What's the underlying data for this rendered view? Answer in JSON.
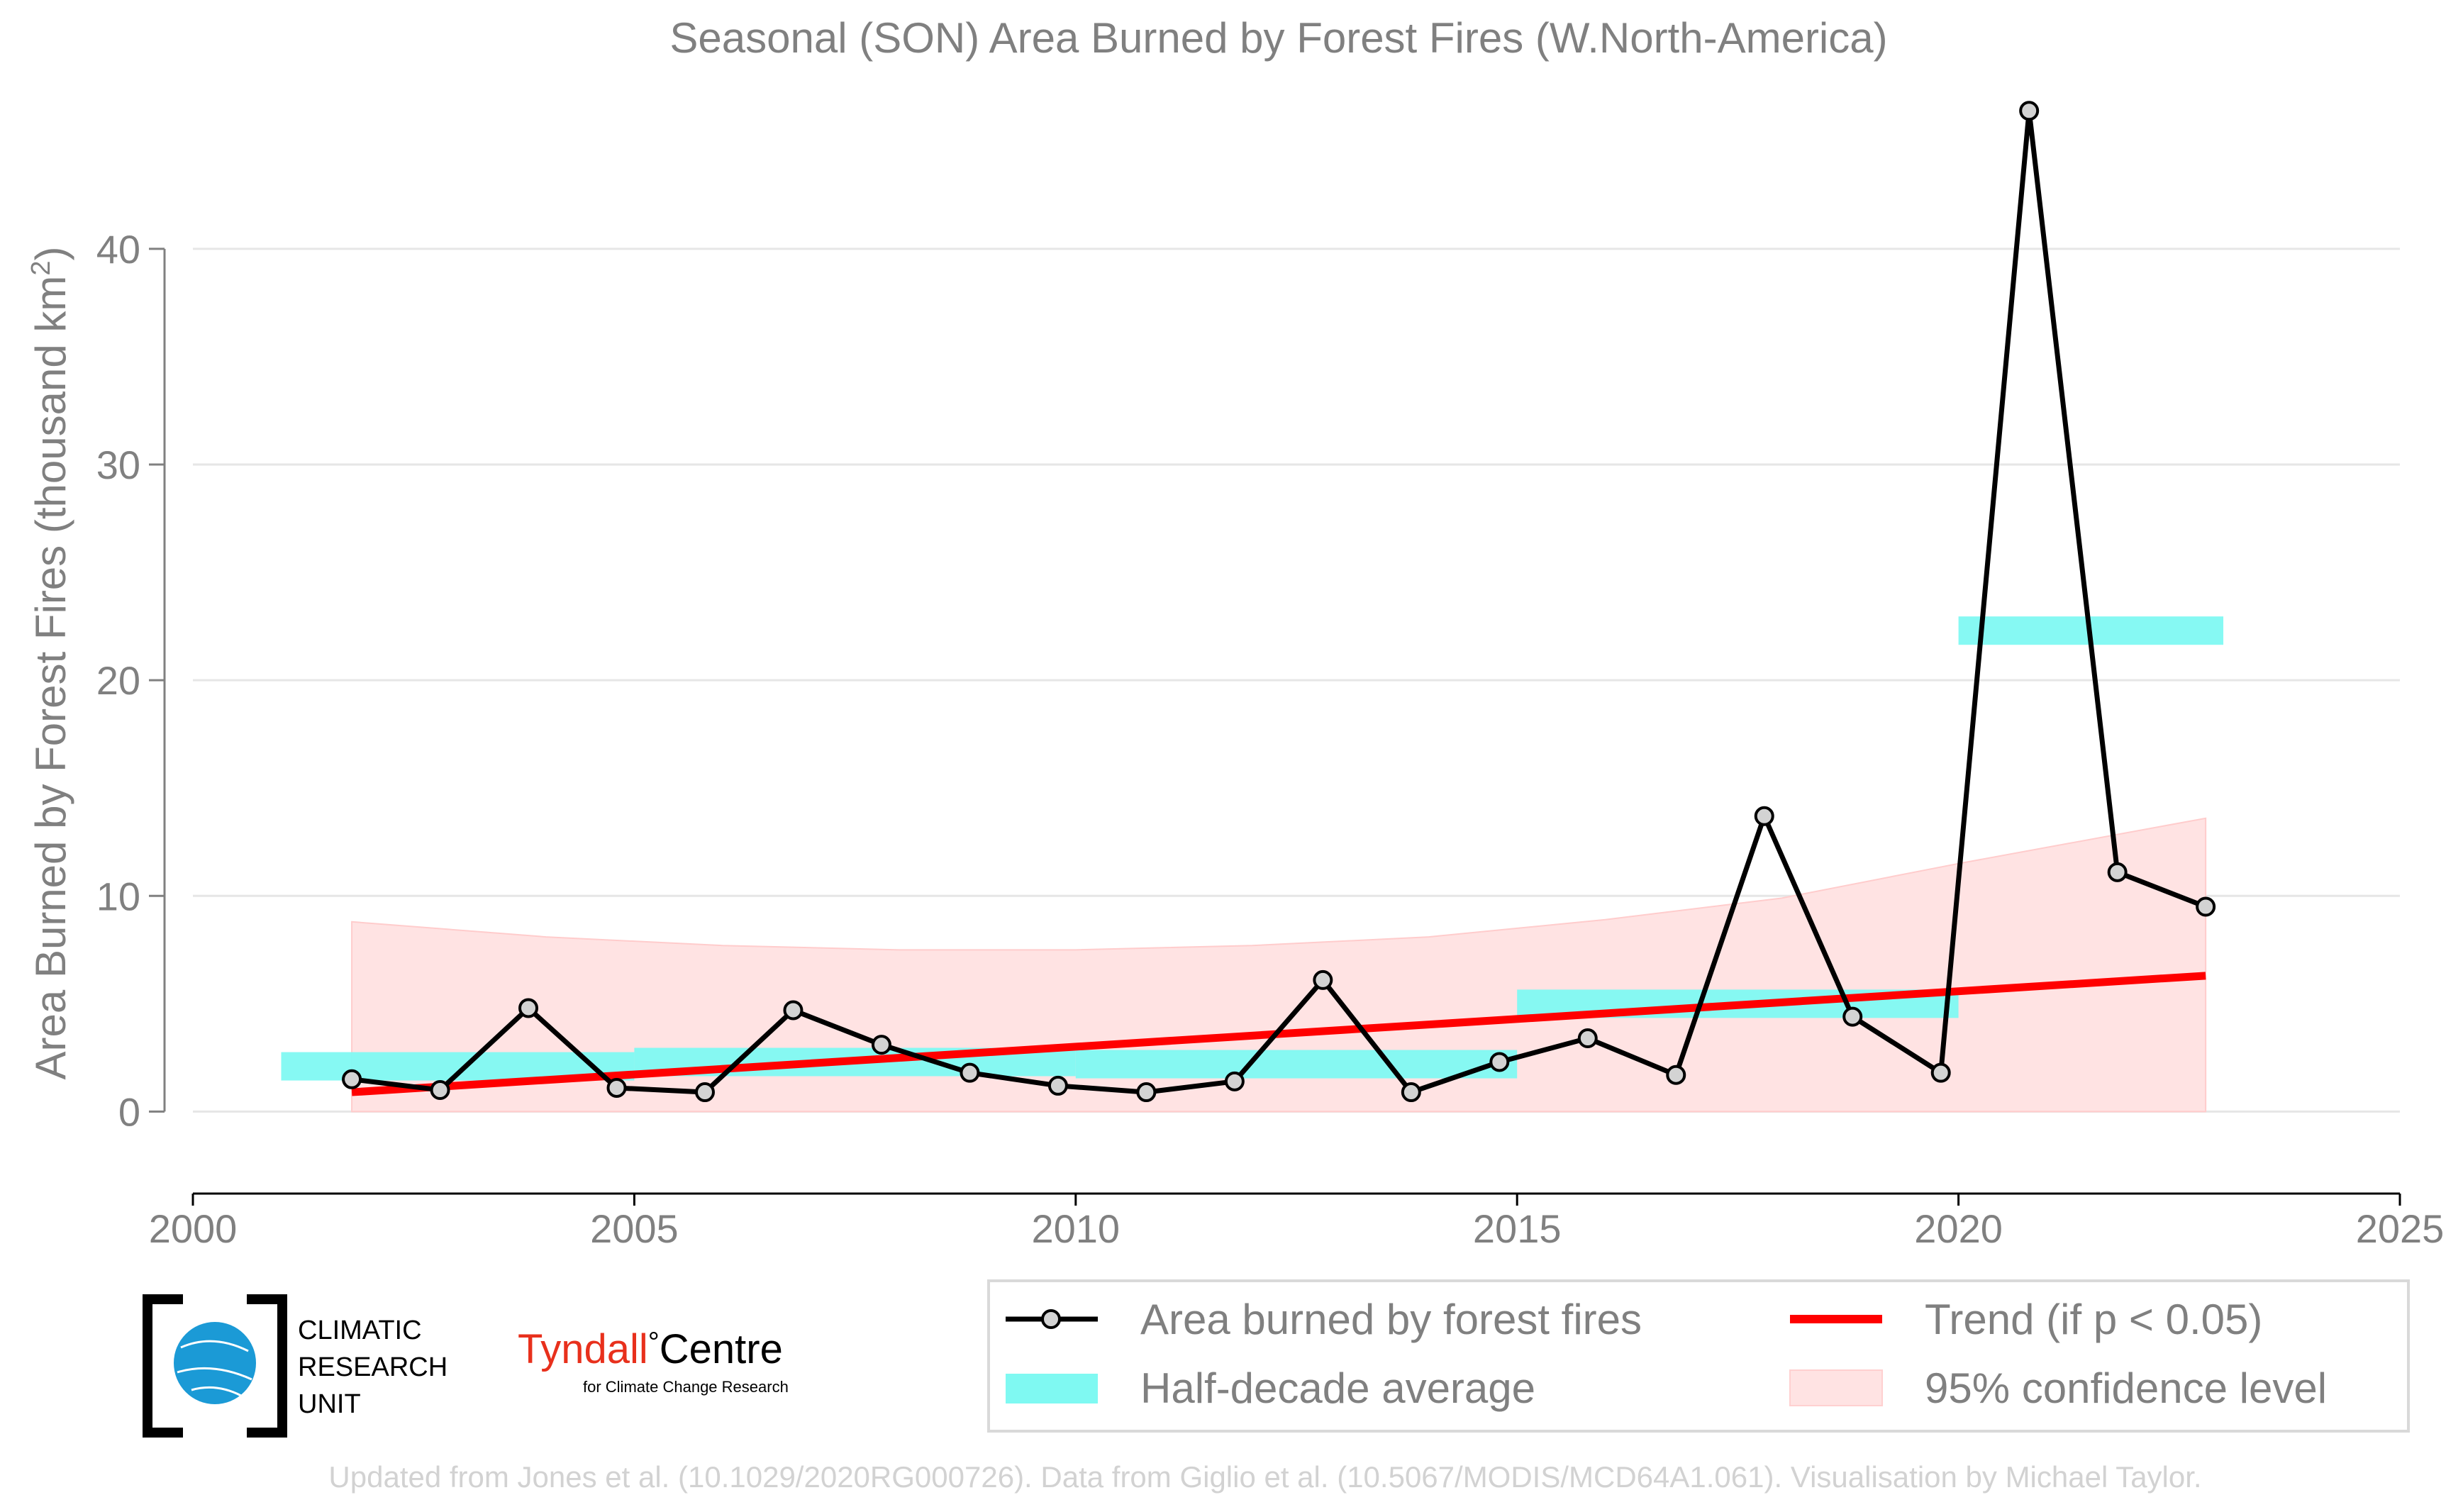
{
  "chart_data": {
    "type": "line",
    "title": "Seasonal (SON) Area Burned by Forest Fires (W.North-America)",
    "ylabel_main": "Area Burned by Forest Fires (thousand km",
    "ylabel_sup": "2",
    "ylabel_close": ")",
    "xlim": [
      2000,
      2025
    ],
    "ylim": [
      -3.8,
      47
    ],
    "x_ticks": [
      2000,
      2005,
      2010,
      2015,
      2020,
      2025
    ],
    "y_ticks": [
      0,
      10,
      20,
      30,
      40
    ],
    "grid": "horizontal",
    "legend_position": "bottom-right",
    "series": [
      {
        "name": "Area burned by forest fires",
        "color": "#000000",
        "x": [
          2001.8,
          2002.8,
          2003.8,
          2004.8,
          2005.8,
          2006.8,
          2007.8,
          2008.8,
          2009.8,
          2010.8,
          2011.8,
          2012.8,
          2013.8,
          2014.8,
          2015.8,
          2016.8,
          2017.8,
          2018.8,
          2019.8,
          2020.8,
          2021.8,
          2022.8
        ],
        "y": [
          1.5,
          1.0,
          4.8,
          1.1,
          0.9,
          4.7,
          3.1,
          1.8,
          1.2,
          0.9,
          1.4,
          6.1,
          0.9,
          2.3,
          3.4,
          1.7,
          13.7,
          4.4,
          1.8,
          46.4,
          11.1,
          9.5
        ]
      },
      {
        "name": "Trend (if p < 0.05)",
        "color": "#ff0000",
        "x": [
          2001.8,
          2022.8
        ],
        "y": [
          0.9,
          6.3
        ]
      }
    ],
    "half_decade_average": {
      "name": "Half-decade average",
      "color": "#7ff9f2",
      "segments": [
        {
          "x_start": 2001.0,
          "x_end": 2005.0,
          "y": 2.1
        },
        {
          "x_start": 2005.0,
          "x_end": 2010.0,
          "y": 2.3
        },
        {
          "x_start": 2010.0,
          "x_end": 2015.0,
          "y": 2.2
        },
        {
          "x_start": 2015.0,
          "x_end": 2020.0,
          "y": 5.0
        },
        {
          "x_start": 2020.0,
          "x_end": 2023.0,
          "y": 22.3
        }
      ]
    },
    "confidence_band": {
      "name": "95% confidence level",
      "color": "#ffe3e3",
      "x": [
        2001.8,
        2004.0,
        2006.0,
        2008.0,
        2010.0,
        2012.0,
        2014.0,
        2016.0,
        2018.0,
        2020.0,
        2022.8
      ],
      "upper": [
        8.8,
        8.1,
        7.7,
        7.5,
        7.5,
        7.7,
        8.1,
        8.9,
        9.9,
        11.5,
        13.6
      ],
      "lower": [
        0,
        0,
        0,
        0,
        0,
        0,
        0,
        0,
        0,
        0,
        0
      ]
    }
  },
  "logos": {
    "cru_line1": "CLIMATIC",
    "cru_line2": "RESEARCH",
    "cru_line3": "UNIT",
    "tyndall_main": "Tyndall",
    "tyndall_deg": "°",
    "tyndall_centre": "Centre",
    "tyndall_sub": "for Climate Change Research"
  },
  "credit": "Updated from Jones et al. (10.1029/2020RG000726). Data from Giglio et al. (10.5067/MODIS/MCD64A1.061). Visualisation by Michael Taylor."
}
